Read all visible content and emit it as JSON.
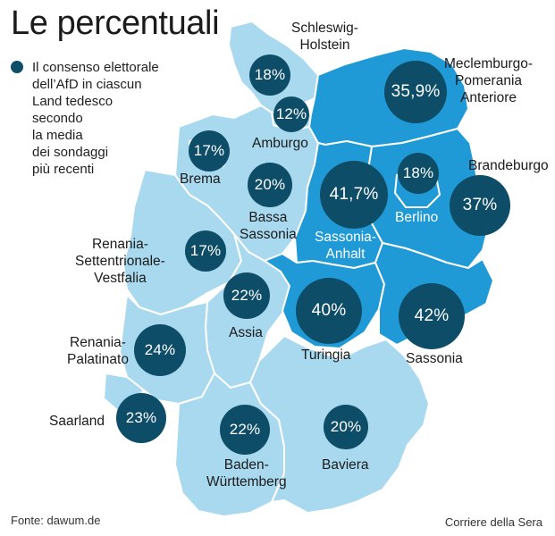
{
  "title": "Le percentuali",
  "legend": {
    "text": "Il consenso elettorale\ndell’AfD in ciascun\nLand tedesco\nsecondo\nla media\ndei sondaggi\npiù recenti",
    "marker_color": "#0e4d67"
  },
  "colors": {
    "west_fill": "#a9d9ef",
    "east_fill": "#1f9ad6",
    "bubble": "#0e4d67",
    "borders": "#ffffff"
  },
  "regions": [
    {
      "id": "schleswig-holstein",
      "label": "Schleswig-\nHolstein",
      "value": "18%",
      "pct": 18
    },
    {
      "id": "meclemburgo",
      "label": "Meclemburgo-\nPomerania\nAnteriore",
      "value": "35,9%",
      "pct": 35.9
    },
    {
      "id": "amburgo",
      "label": "Amburgo",
      "value": "12%",
      "pct": 12
    },
    {
      "id": "brema",
      "label": "Brema",
      "value": "17%",
      "pct": 17
    },
    {
      "id": "bassa-sassonia",
      "label": "Bassa\nSassonia",
      "value": "20%",
      "pct": 20
    },
    {
      "id": "sassonia-anhalt",
      "label": "Sassonia-\nAnhalt",
      "value": "41,7%",
      "pct": 41.7
    },
    {
      "id": "berlino",
      "label": "Berlino",
      "value": "18%",
      "pct": 18
    },
    {
      "id": "brandeburgo",
      "label": "Brandeburgo",
      "value": "37%",
      "pct": 37
    },
    {
      "id": "renania-vestfalia",
      "label": "Renania-\nSettentrionale-\nVestfalia",
      "value": "17%",
      "pct": 17
    },
    {
      "id": "assia",
      "label": "Assia",
      "value": "22%",
      "pct": 22
    },
    {
      "id": "turingia",
      "label": "Turingia",
      "value": "40%",
      "pct": 40
    },
    {
      "id": "sassonia",
      "label": "Sassonia",
      "value": "42%",
      "pct": 42
    },
    {
      "id": "renania-palatinato",
      "label": "Renania-\nPalatinato",
      "value": "24%",
      "pct": 24
    },
    {
      "id": "saarland",
      "label": "Saarland",
      "value": "23%",
      "pct": 23
    },
    {
      "id": "baden-wurttemberg",
      "label": "Baden-\nWürttemberg",
      "value": "22%",
      "pct": 22
    },
    {
      "id": "baviera",
      "label": "Baviera",
      "value": "20%",
      "pct": 20
    }
  ],
  "footer": {
    "source": "Fonte: dawum.de",
    "credit": "Corriere della Sera"
  }
}
